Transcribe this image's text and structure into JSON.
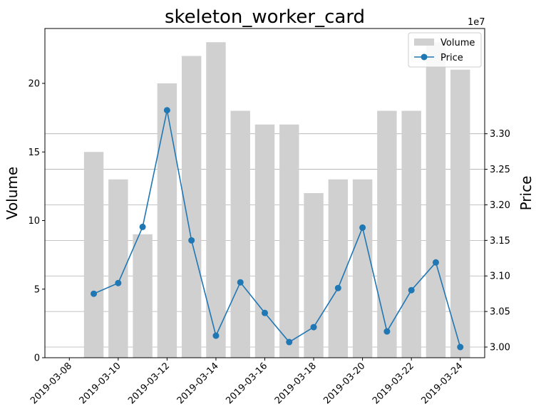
{
  "chart_data": {
    "type": "bar+line",
    "title": "skeleton_worker_card",
    "x": [
      "2019-03-09",
      "2019-03-10",
      "2019-03-11",
      "2019-03-12",
      "2019-03-13",
      "2019-03-14",
      "2019-03-15",
      "2019-03-16",
      "2019-03-17",
      "2019-03-18",
      "2019-03-19",
      "2019-03-20",
      "2019-03-21",
      "2019-03-22",
      "2019-03-23",
      "2019-03-24"
    ],
    "xticks": [
      "2019-03-08",
      "2019-03-10",
      "2019-03-12",
      "2019-03-14",
      "2019-03-16",
      "2019-03-18",
      "2019-03-20",
      "2019-03-22",
      "2019-03-24"
    ],
    "xlim": [
      "2019-03-07",
      "2019-03-25"
    ],
    "series": [
      {
        "name": "Volume",
        "kind": "bar",
        "axis": "left",
        "color": "#d0d0d0",
        "values": [
          15,
          13,
          9,
          20,
          22,
          23,
          18,
          17,
          17,
          12,
          13,
          13,
          18,
          18,
          23,
          21
        ]
      },
      {
        "name": "Price",
        "kind": "line",
        "axis": "right",
        "color": "#1f77b4",
        "values": [
          30750000,
          30900000,
          31690000,
          33330000,
          31500000,
          30160000,
          30910000,
          30480000,
          30070000,
          30280000,
          30830000,
          31680000,
          30220000,
          30800000,
          31190000,
          30000000
        ]
      }
    ],
    "ylabel_left": "Volume",
    "ylabel_right": "Price",
    "ylim_left": [
      0,
      24
    ],
    "yticks_left": [
      0,
      5,
      10,
      15,
      20
    ],
    "ylim_right": [
      29850000,
      34480000
    ],
    "yticks_right": [
      30000000,
      30500000,
      31000000,
      31500000,
      32000000,
      32500000,
      33000000
    ],
    "ytick_labels_right": [
      "3.00",
      "3.05",
      "3.10",
      "3.15",
      "3.20",
      "3.25",
      "3.30"
    ],
    "right_axis_multiplier": "1e7",
    "grid": "horizontal gridlines at right-axis ticks",
    "legend": [
      "Volume",
      "Price"
    ],
    "legend_placement": "top-right"
  }
}
